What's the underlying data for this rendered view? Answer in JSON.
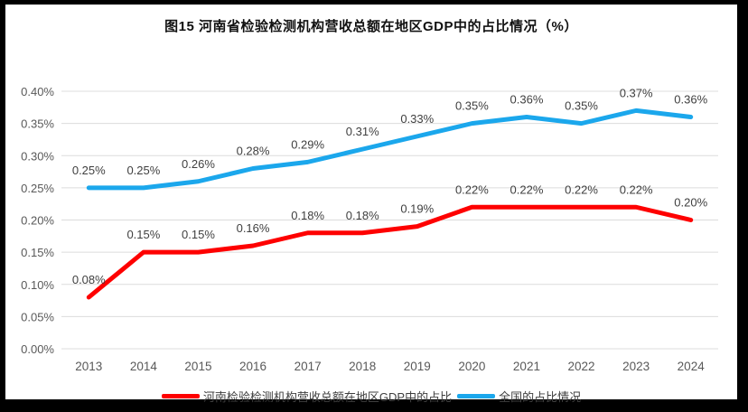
{
  "header": {
    "title": "图15  河南省检验检测机构营收总额在地区GDP中的占比情况（%）"
  },
  "chart_data": {
    "type": "line",
    "title": "图15  河南省检验检测机构营收总额在地区GDP中的占比情况（%）",
    "categories": [
      "2013",
      "2014",
      "2015",
      "2016",
      "2017",
      "2018",
      "2019",
      "2020",
      "2021",
      "2022",
      "2023",
      "2024"
    ],
    "series": [
      {
        "name": "河南检验检测机构营收总额在地区GDP中的占比",
        "color": "#FE0000",
        "values": [
          0.08,
          0.15,
          0.15,
          0.16,
          0.18,
          0.18,
          0.19,
          0.22,
          0.22,
          0.22,
          0.22,
          0.2
        ],
        "labels": [
          "0.08%",
          "0.15%",
          "0.15%",
          "0.16%",
          "0.18%",
          "0.18%",
          "0.19%",
          "0.22%",
          "0.22%",
          "0.22%",
          "0.22%",
          "0.20%"
        ]
      },
      {
        "name": "全国的占比情况",
        "color": "#1BA7EC",
        "values": [
          0.25,
          0.25,
          0.26,
          0.28,
          0.29,
          0.31,
          0.33,
          0.35,
          0.36,
          0.35,
          0.37,
          0.36
        ],
        "labels": [
          "0.25%",
          "0.25%",
          "0.26%",
          "0.28%",
          "0.29%",
          "0.31%",
          "0.33%",
          "0.35%",
          "0.36%",
          "0.35%",
          "0.37%",
          "0.36%"
        ]
      }
    ],
    "xlabel": "",
    "ylabel": "",
    "ylim": [
      0,
      0.4
    ],
    "ytick_step": 0.05,
    "ytick_labels": [
      "0.00%",
      "0.05%",
      "0.10%",
      "0.15%",
      "0.20%",
      "0.25%",
      "0.30%",
      "0.35%",
      "0.40%"
    ],
    "grid": true,
    "legend_position": "bottom",
    "colors": {
      "gridline": "#DCDCDC",
      "tick_text": "#595959",
      "data_label_text": "#3F3F3F",
      "background": "#FFFFFF",
      "frame": "#000000"
    }
  }
}
